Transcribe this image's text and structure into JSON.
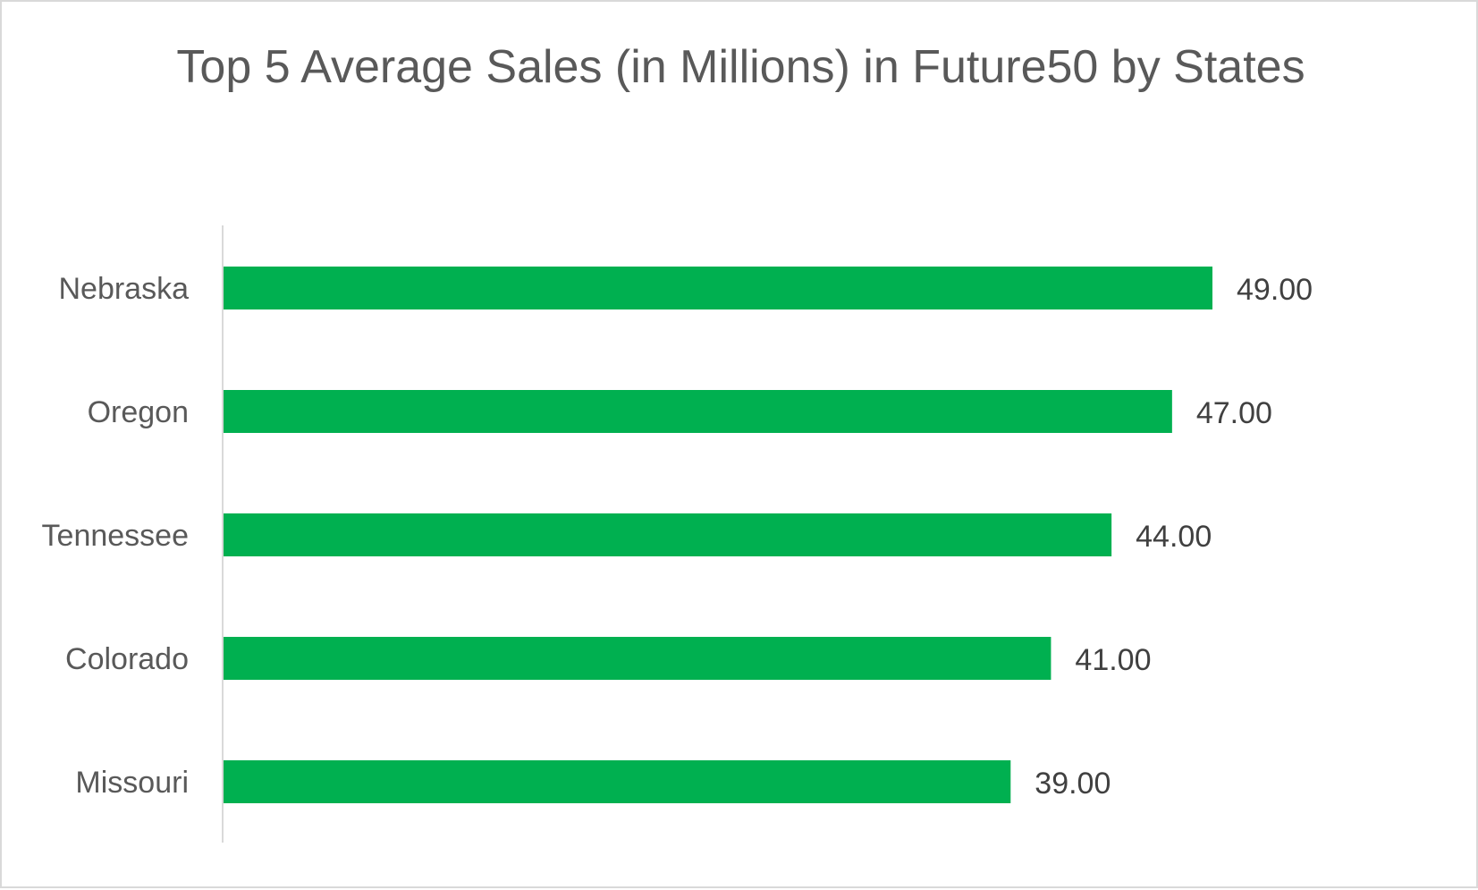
{
  "chart_data": {
    "type": "bar",
    "orientation": "horizontal",
    "title": "Top 5 Average Sales (in Millions) in Future50 by States",
    "categories": [
      "Nebraska",
      "Oregon",
      "Tennessee",
      "Colorado",
      "Missouri"
    ],
    "values": [
      49,
      47,
      44,
      41,
      39
    ],
    "data_labels": [
      "49.00",
      "47.00",
      "44.00",
      "41.00",
      "39.00"
    ],
    "xlim": [
      0,
      55
    ],
    "xlabel": "",
    "ylabel": "",
    "grid": false,
    "legend": "none",
    "colors": {
      "bar": "#00B050",
      "axis": "#d9d9d9"
    }
  }
}
